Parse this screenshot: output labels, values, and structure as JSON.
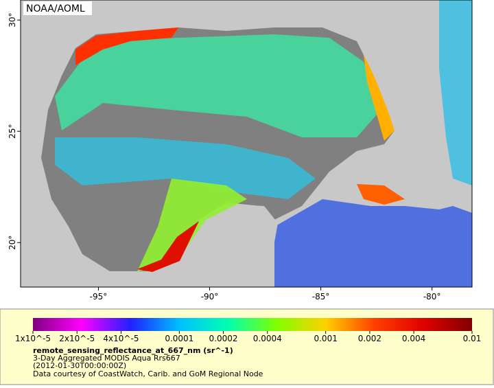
{
  "map": {
    "credit": "NOAA/AOML",
    "xlim": [
      -98.5,
      -78.2
    ],
    "ylim": [
      18.0,
      30.9
    ],
    "lon_ticks": [
      {
        "value": -95,
        "label": "-95°"
      },
      {
        "value": -90,
        "label": "-90°"
      },
      {
        "value": -85,
        "label": "-85°"
      },
      {
        "value": -80,
        "label": "-80°"
      }
    ],
    "lat_ticks": [
      {
        "value": 20,
        "label": "20°"
      },
      {
        "value": 25,
        "label": "25°"
      },
      {
        "value": 30,
        "label": "30°"
      }
    ]
  },
  "colorbar": {
    "log_scale": true,
    "lim": [
      1e-05,
      0.01
    ],
    "colors": [
      "#7f007f",
      "#ff00ff",
      "#2020ff",
      "#00bfff",
      "#00ffb0",
      "#80ff00",
      "#ffd000",
      "#ff4000",
      "#e00000",
      "#800000"
    ],
    "ticks": [
      {
        "value": 1e-05,
        "label": "1x10^-5"
      },
      {
        "value": 2e-05,
        "label": "2x10^-5"
      },
      {
        "value": 4e-05,
        "label": "4x10^-5"
      },
      0.0001,
      0.0002,
      0.0004,
      0.001,
      0.002,
      0.004,
      0.01
    ],
    "variable": "remote_sensing_reflectance_at_667_nm (sr^-1)",
    "description": "3-Day Aggregated MODIS Aqua Rrs667",
    "time": "(2012-01-30T00:00:00Z)",
    "courtesy": "Data courtesy of CoastWatch, Carib. and GoM Regional Node"
  }
}
